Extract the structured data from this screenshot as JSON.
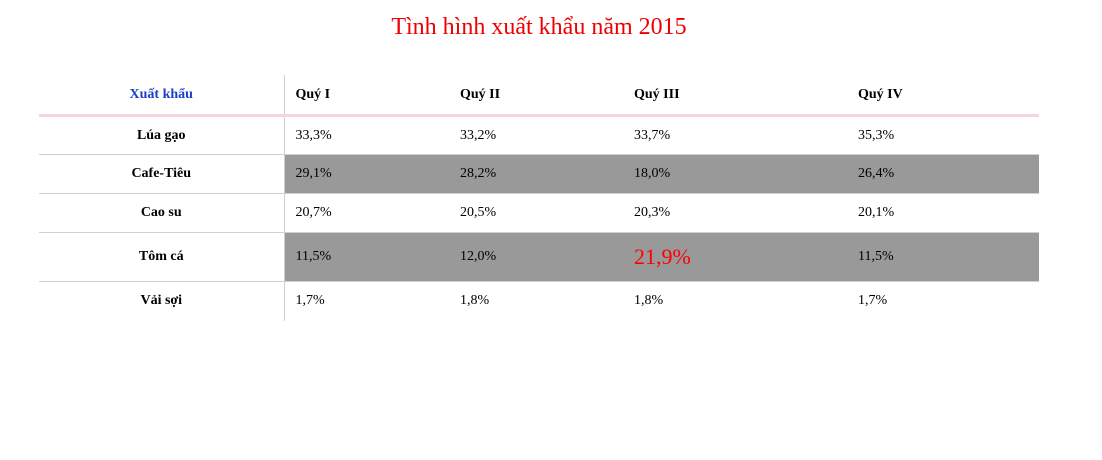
{
  "title": "Tình hình xuất khẩu năm 2015",
  "colors": {
    "title": "#ee0000",
    "header_label": "#1a3fc4",
    "shaded_row": "#999999",
    "highlight": "#ff0000",
    "header_rule": "#f7d4db"
  },
  "table": {
    "corner_header": "Xuất khẩu",
    "columns": [
      "Quý I",
      "Quý II",
      "Quý III",
      "Quý IV"
    ],
    "rows": [
      {
        "label": "Lúa gạo",
        "values": [
          "33,3%",
          "33,2%",
          "33,7%",
          "35,3%"
        ],
        "shaded": false
      },
      {
        "label": "Cafe-Tiêu",
        "values": [
          "29,1%",
          "28,2%",
          "18,0%",
          "26,4%"
        ],
        "shaded": true
      },
      {
        "label": "Cao su",
        "values": [
          "20,7%",
          "20,5%",
          "20,3%",
          "20,1%"
        ],
        "shaded": false
      },
      {
        "label": "Tôm cá",
        "values": [
          "11,5%",
          "12,0%",
          "21,9%",
          "11,5%"
        ],
        "shaded": true,
        "highlight_col": 2
      },
      {
        "label": "Vải sợi",
        "values": [
          "1,7%",
          "1,8%",
          "1,8%",
          "1,7%"
        ],
        "shaded": false
      }
    ]
  }
}
